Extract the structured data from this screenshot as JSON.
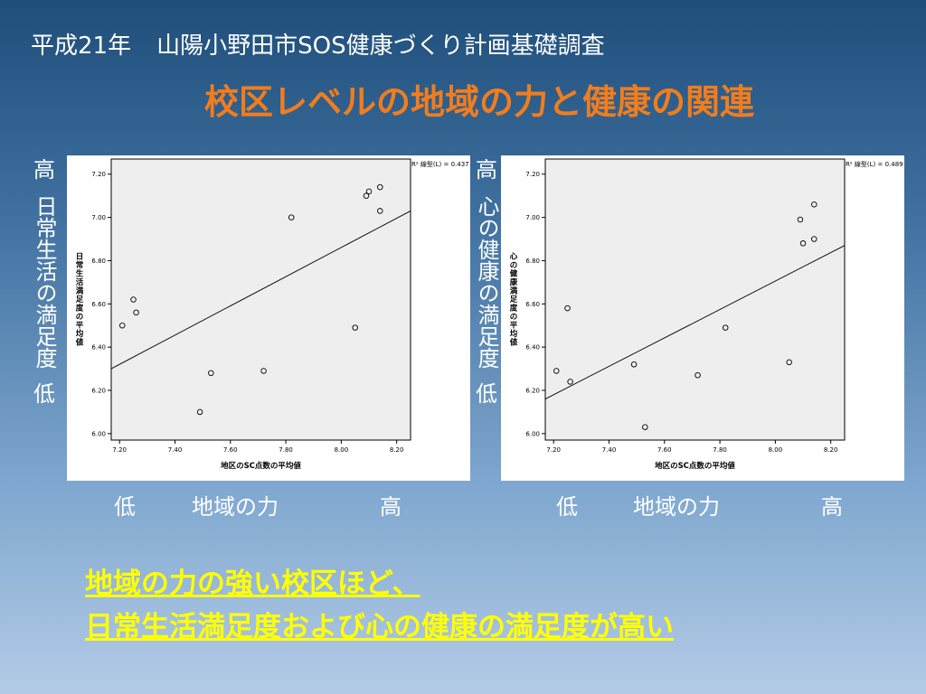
{
  "slide": {
    "header_year": "平成21年",
    "header_survey": "山陽小野田市SOS健康づくり計画基礎調査",
    "title": "校区レベルの地域の力と健康の関連",
    "conclusion_line1": "地域の力の強い校区ほど、",
    "conclusion_line2": "日常生活満足度および心の健康の満足度が高い"
  },
  "left_axis_label": {
    "high": "高",
    "middle": "日常生活の満足度",
    "low": "低"
  },
  "right_axis_label": {
    "high": "高",
    "middle": "心の健康の満足度",
    "low": "低"
  },
  "bottom_labels": {
    "low": "低",
    "middle": "地域の力",
    "high": "高"
  },
  "colors": {
    "title": "#f07d1e",
    "conclusion": "#ffff00",
    "plot_background": "#eeeeee"
  },
  "chart_data": [
    {
      "type": "scatter",
      "xlabel": "地区のSC点数の平均値",
      "ylabel": "日常生活満足度の平均値",
      "xlim": [
        7.17,
        8.25
      ],
      "ylim": [
        5.97,
        7.27
      ],
      "xticks": [
        "7.20",
        "7.40",
        "7.60",
        "7.80",
        "8.00",
        "8.20"
      ],
      "yticks": [
        "6.00",
        "6.20",
        "6.40",
        "6.60",
        "6.80",
        "7.00",
        "7.20"
      ],
      "legend": "R² 線型(L) = 0.437",
      "fit_line": [
        [
          7.17,
          6.3
        ],
        [
          8.25,
          7.03
        ]
      ],
      "points": [
        {
          "x": 7.21,
          "y": 6.5
        },
        {
          "x": 7.25,
          "y": 6.62
        },
        {
          "x": 7.26,
          "y": 6.56
        },
        {
          "x": 7.49,
          "y": 6.1
        },
        {
          "x": 7.53,
          "y": 6.28
        },
        {
          "x": 7.72,
          "y": 6.29
        },
        {
          "x": 7.82,
          "y": 7.0
        },
        {
          "x": 8.05,
          "y": 6.49
        },
        {
          "x": 8.09,
          "y": 7.1
        },
        {
          "x": 8.1,
          "y": 7.12
        },
        {
          "x": 8.14,
          "y": 7.03
        },
        {
          "x": 8.14,
          "y": 7.14
        }
      ]
    },
    {
      "type": "scatter",
      "xlabel": "地区のSC点数の平均値",
      "ylabel": "心の健康満足度の平均値",
      "xlim": [
        7.17,
        8.25
      ],
      "ylim": [
        5.97,
        7.27
      ],
      "xticks": [
        "7.20",
        "7.40",
        "7.60",
        "7.80",
        "8.00",
        "8.20"
      ],
      "yticks": [
        "6.00",
        "6.20",
        "6.40",
        "6.60",
        "6.80",
        "7.00",
        "7.20"
      ],
      "legend": "R² 線型(L) = 0.489",
      "fit_line": [
        [
          7.17,
          6.16
        ],
        [
          8.25,
          6.87
        ]
      ],
      "points": [
        {
          "x": 7.21,
          "y": 6.29
        },
        {
          "x": 7.25,
          "y": 6.58
        },
        {
          "x": 7.26,
          "y": 6.24
        },
        {
          "x": 7.49,
          "y": 6.32
        },
        {
          "x": 7.53,
          "y": 6.03
        },
        {
          "x": 7.72,
          "y": 6.27
        },
        {
          "x": 7.82,
          "y": 6.49
        },
        {
          "x": 8.05,
          "y": 6.33
        },
        {
          "x": 8.09,
          "y": 6.99
        },
        {
          "x": 8.1,
          "y": 6.88
        },
        {
          "x": 8.14,
          "y": 6.9
        },
        {
          "x": 8.14,
          "y": 7.06
        }
      ]
    }
  ]
}
